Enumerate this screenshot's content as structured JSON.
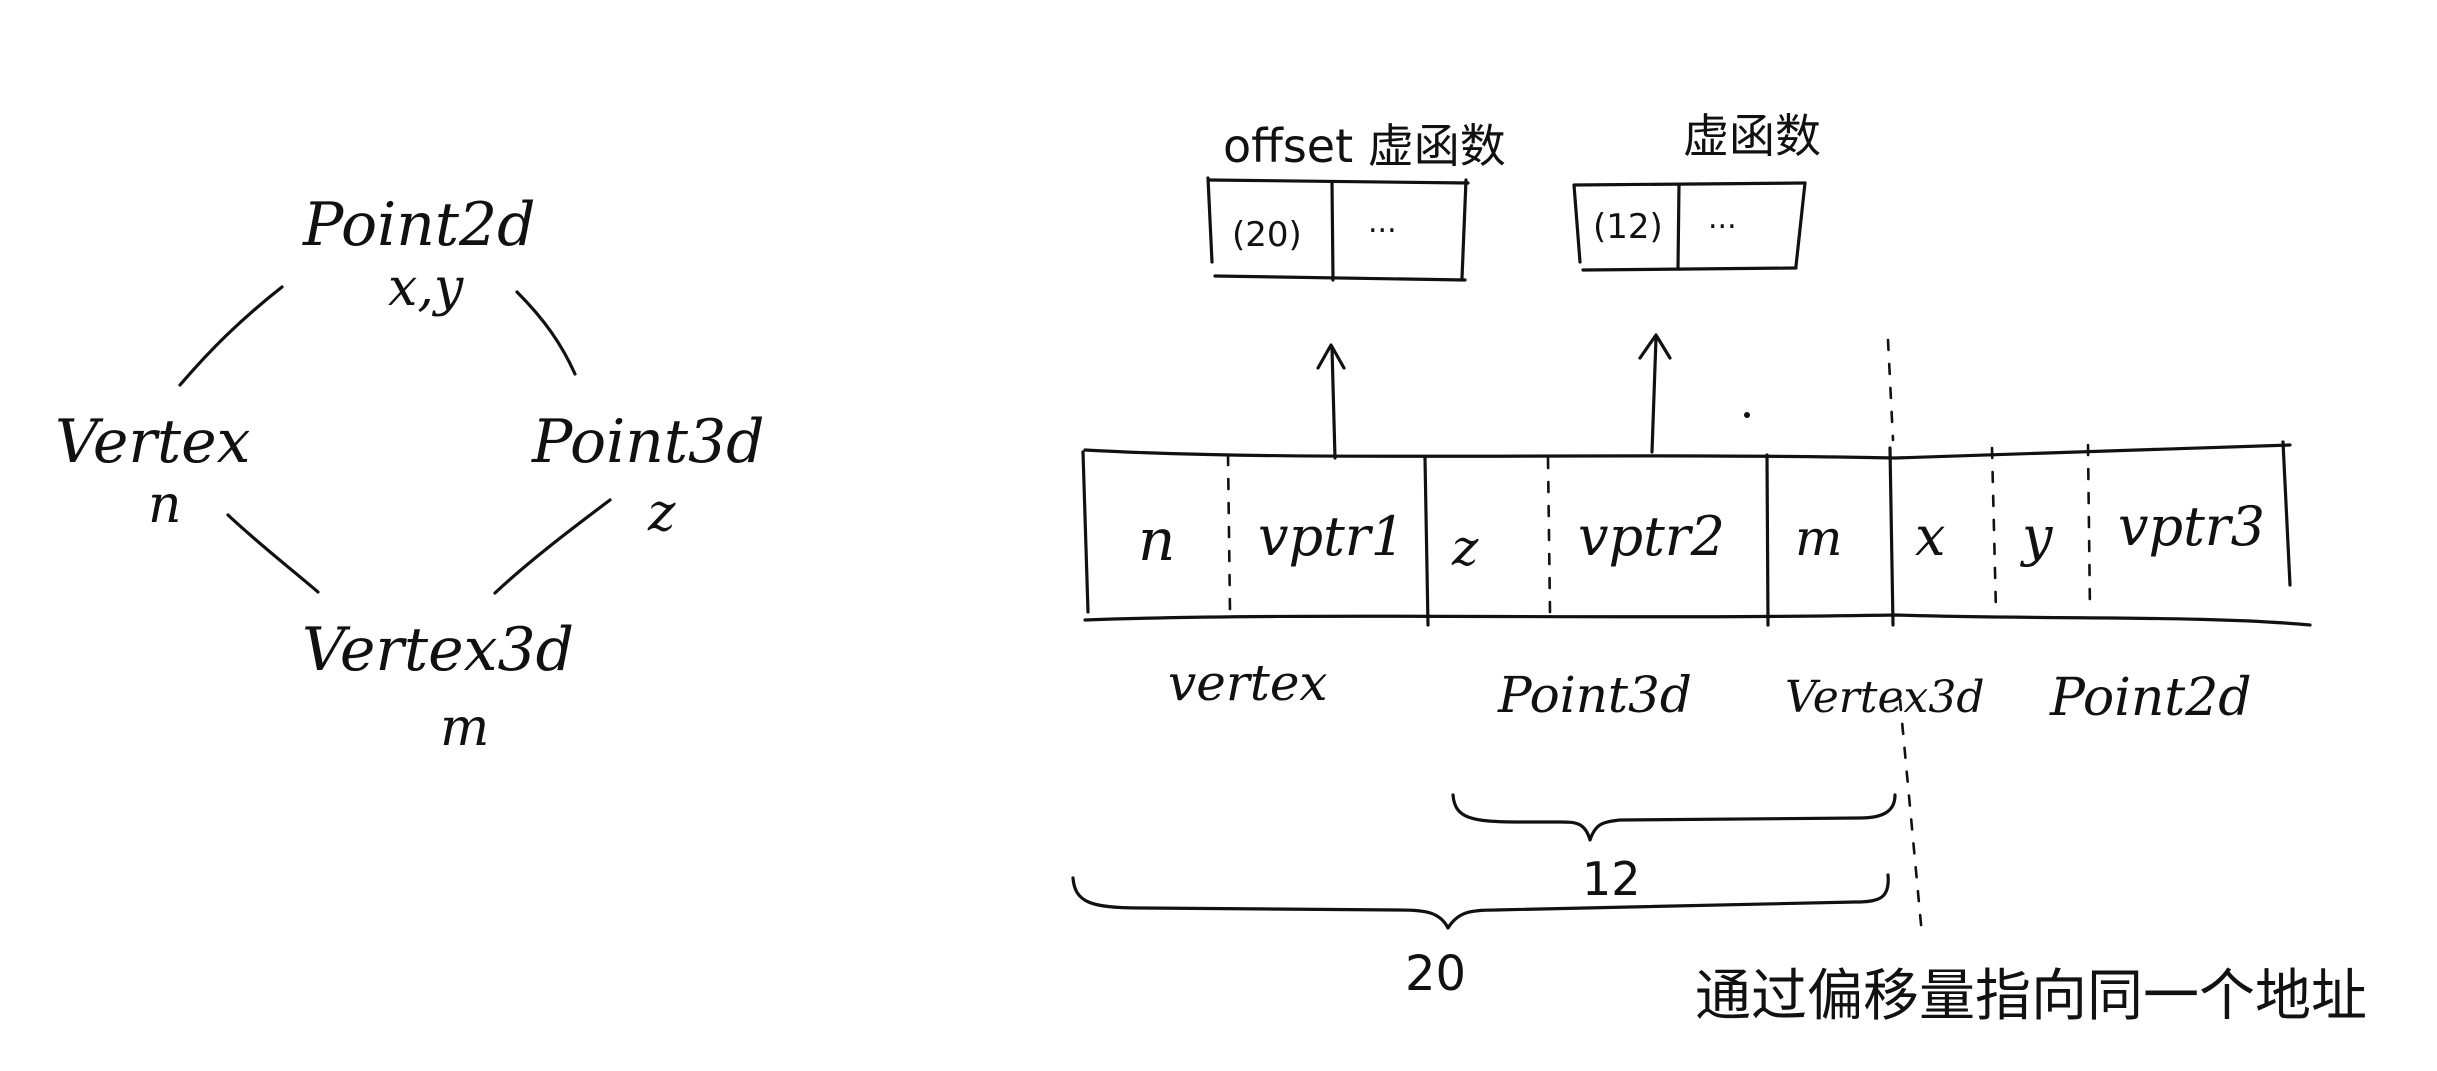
{
  "hierarchy": {
    "nodes": [
      {
        "id": "point2d",
        "name": "Point2d",
        "member": "x,y"
      },
      {
        "id": "vertex",
        "name": "Vertex",
        "member": "n"
      },
      {
        "id": "point3d",
        "name": "Point3d",
        "member": "z"
      },
      {
        "id": "vertex3d",
        "name": "Vertex3d",
        "member": "m"
      }
    ]
  },
  "vtables": {
    "left": {
      "title": "offset 虚函数",
      "first": "(20)",
      "rest": "..."
    },
    "right": {
      "title": "虚函数",
      "first": "(12)",
      "rest": "..."
    }
  },
  "layout": {
    "cells": [
      "n",
      "vptr1",
      "z",
      "vptr2",
      "m",
      "x",
      "y",
      "vptr3"
    ],
    "section_labels": [
      "vertex",
      "Point3d",
      "Vertex3d",
      "Point2d"
    ],
    "brace_inner_label": "12",
    "brace_outer_label": "20",
    "note": "通过偏移量指向同一个地址"
  }
}
